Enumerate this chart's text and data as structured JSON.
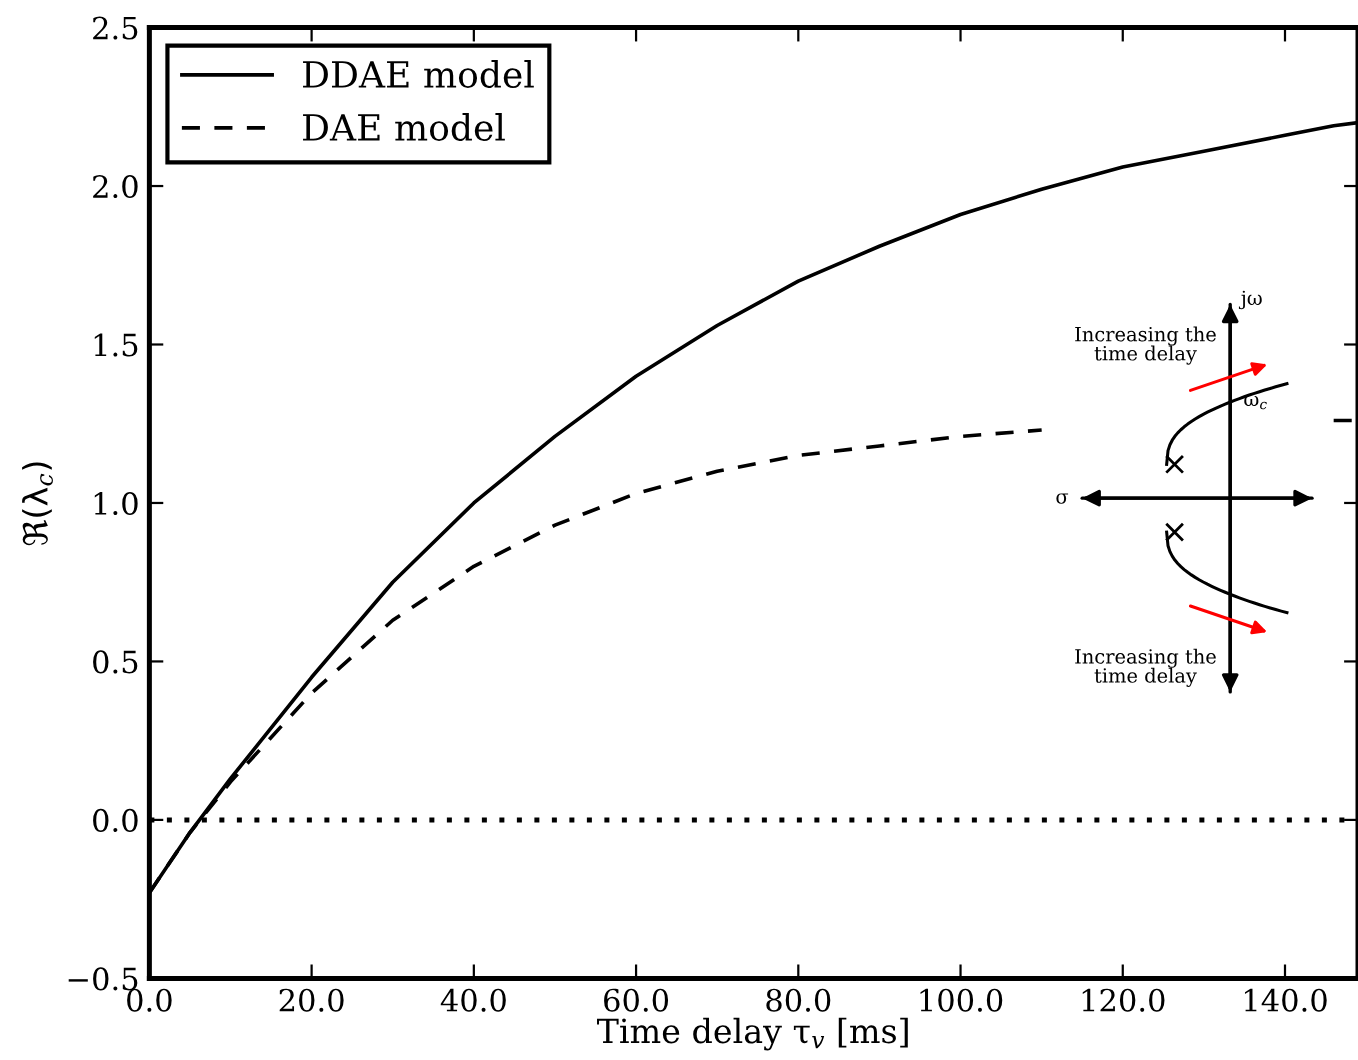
{
  "chart_data": {
    "type": "line",
    "x": [
      0,
      5,
      10,
      20,
      30,
      40,
      50,
      60,
      70,
      80,
      90,
      100,
      110,
      120,
      130,
      140,
      146,
      149
    ],
    "series": [
      {
        "name": "DDAE model",
        "color": "#000000",
        "line_style": "solid",
        "values": [
          -0.23,
          -0.04,
          0.13,
          0.45,
          0.75,
          1.0,
          1.21,
          1.4,
          1.56,
          1.7,
          1.81,
          1.91,
          1.99,
          2.06,
          2.11,
          2.16,
          2.19,
          2.2
        ]
      },
      {
        "name": "DAE model",
        "color": "#000000",
        "line_style": "dashed",
        "values": [
          -0.23,
          -0.04,
          0.12,
          0.4,
          0.63,
          0.8,
          0.93,
          1.03,
          1.1,
          1.15,
          1.18,
          1.21,
          1.23,
          null,
          null,
          null,
          1.26,
          1.26
        ]
      }
    ],
    "xlabel": "Time delay τ$_{v}$ [ms]",
    "ylabel": "ℜ(λ$_{c}$)",
    "xlim": [
      0,
      149
    ],
    "ylim": [
      -0.5,
      2.5
    ],
    "xticks": [
      {
        "value": 0,
        "label": "0.0"
      },
      {
        "value": 20,
        "label": "20.0"
      },
      {
        "value": 40,
        "label": "40.0"
      },
      {
        "value": 60,
        "label": "60.0"
      },
      {
        "value": 80,
        "label": "80.0"
      },
      {
        "value": 100,
        "label": "100.0"
      },
      {
        "value": 120,
        "label": "120.0"
      },
      {
        "value": 140,
        "label": "140.0"
      }
    ],
    "yticks": [
      {
        "value": -0.5,
        "label": "−0.5"
      },
      {
        "value": 0,
        "label": "0.0"
      },
      {
        "value": 0.5,
        "label": "0.5"
      },
      {
        "value": 1.0,
        "label": "1.0"
      },
      {
        "value": 1.5,
        "label": "1.5"
      },
      {
        "value": 2.0,
        "label": "2.0"
      },
      {
        "value": 2.5,
        "label": "2.5"
      }
    ],
    "ref_lines": [
      {
        "axis": "y",
        "value": 0,
        "color": "#000000",
        "line_style": "dotted"
      }
    ],
    "annotations": [
      "jω",
      "σ",
      "ω$_{c}$",
      "Increasing the time delay",
      "Increasing the time delay"
    ],
    "legend": "top left",
    "grid": false
  }
}
